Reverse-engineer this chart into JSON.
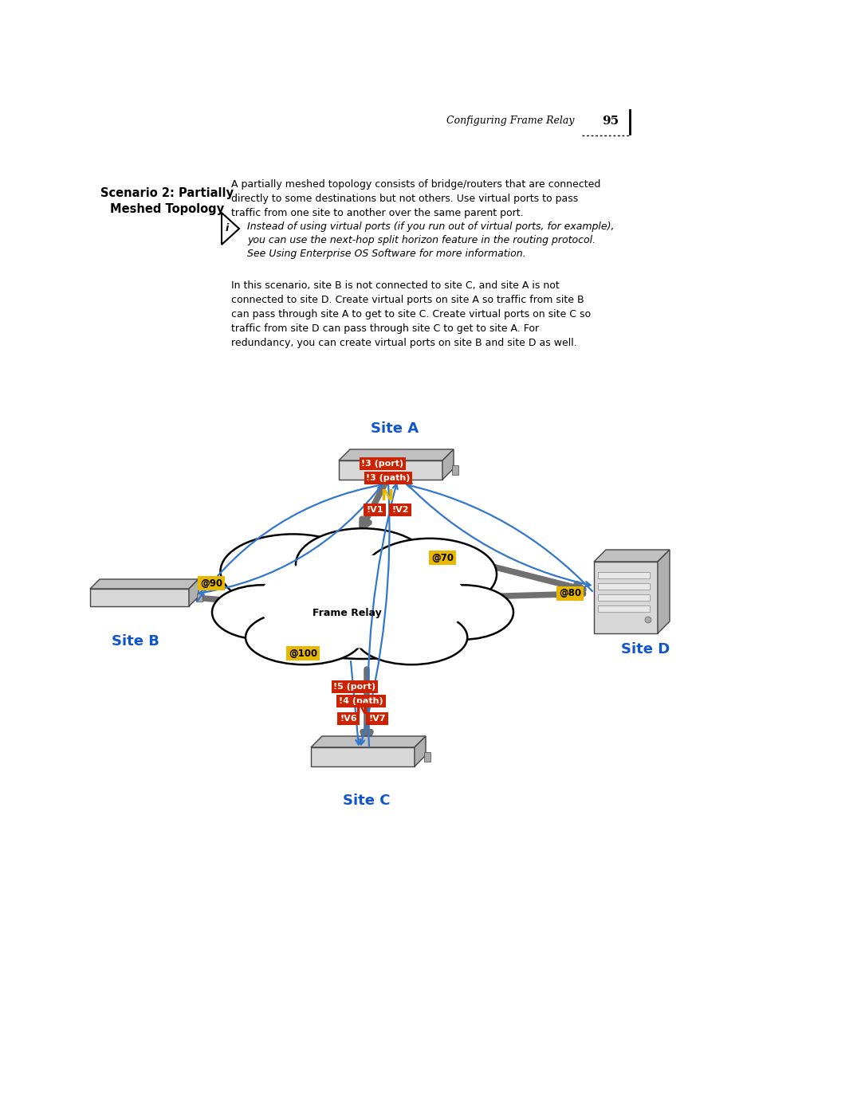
{
  "page_header": "Configuring Frame Relay",
  "page_number": "95",
  "section_title_1": "Scenario 2: Partially",
  "section_title_2": "Meshed Topology",
  "para1_lines": [
    "A partially meshed topology consists of bridge/routers that are connected",
    "directly to some destinations but not others. Use virtual ports to pass",
    "traffic from one site to another over the same parent port."
  ],
  "note_lines": [
    "Instead of using virtual ports (if you run out of virtual ports, for example),",
    "you can use the next-hop split horizon feature in the routing protocol.",
    "See Using Enterprise OS Software for more information."
  ],
  "para2_lines": [
    "In this scenario, site B is not connected to site C, and site A is not",
    "connected to site D. Create virtual ports on site A so traffic from site B",
    "can pass through site A to get to site C. Create virtual ports on site C so",
    "traffic from site D can pass through site C to get to site A. For",
    "redundancy, you can create virtual ports on site B and site D as well."
  ],
  "site_a_label": "Site A",
  "site_b_label": "Site B",
  "site_c_label": "Site C",
  "site_d_label": "Site D",
  "frame_relay_label": "Frame Relay",
  "site_color": "#1155cc",
  "red_box_color": "#cc2200",
  "yellow_box_color": "#e8b800",
  "bg_color": "#ffffff",
  "text_color": "#000000",
  "port_labels": {
    "siteA_port": "!3 (port)",
    "siteA_path": "!3 (path)",
    "siteA_v1": "!V1",
    "siteA_v2": "!V2",
    "siteB_at": "@90",
    "siteC_v6": "!V6",
    "siteC_v7": "!V7",
    "siteC_port": "!5 (port)",
    "siteC_path": "!4 (path)",
    "at70": "@70",
    "at80": "@80",
    "at100": "@100"
  }
}
